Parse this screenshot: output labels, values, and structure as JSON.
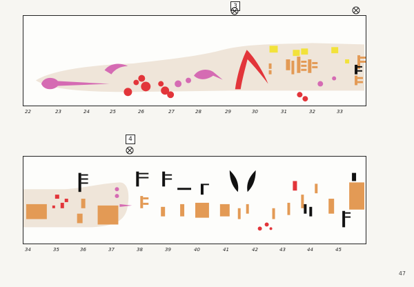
{
  "page": {
    "number": "47"
  },
  "systems": [
    {
      "section": "3",
      "ruler": [
        "22",
        "23",
        "24",
        "25",
        "26",
        "27",
        "28",
        "29",
        "30",
        "31",
        "32",
        "33"
      ]
    },
    {
      "section": "4",
      "ruler": [
        "34",
        "35",
        "36",
        "37",
        "38",
        "39",
        "40",
        "41",
        "42",
        "43",
        "44",
        "45"
      ]
    }
  ],
  "colors": {
    "band": "#efe5d9",
    "magenta": "#d56bb3",
    "red": "#e2353a",
    "orange": "#e39a55",
    "yellow": "#f2e23b",
    "black": "#111111"
  },
  "icons": {
    "section_marker": "crossed-circle-icon"
  }
}
